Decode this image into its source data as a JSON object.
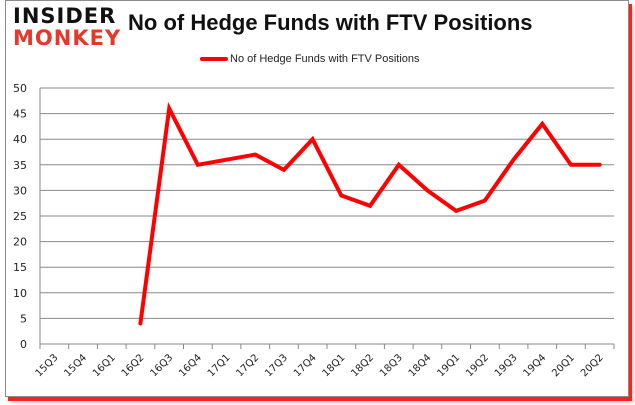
{
  "header": {
    "logo_top": "INSIDER",
    "logo_bottom": "MONKEY",
    "title": "No of Hedge Funds with FTV Positions"
  },
  "legend": {
    "label": "No of Hedge Funds with FTV Positions",
    "color": "#ff0000"
  },
  "colors": {
    "line": "#ff0000",
    "grid": "#888888",
    "brand_red": "#e5382a"
  },
  "chart_data": {
    "type": "line",
    "title": "No of Hedge Funds with FTV Positions",
    "xlabel": "",
    "ylabel": "",
    "ylim": [
      0,
      50
    ],
    "yticks": [
      0,
      5,
      10,
      15,
      20,
      25,
      30,
      35,
      40,
      45,
      50
    ],
    "grid": true,
    "legend_position": "top",
    "categories": [
      "15Q3",
      "15Q4",
      "16Q1",
      "16Q2",
      "16Q3",
      "16Q4",
      "17Q1",
      "17Q2",
      "17Q3",
      "17Q4",
      "18Q1",
      "18Q2",
      "18Q3",
      "18Q4",
      "19Q1",
      "19Q2",
      "19Q3",
      "19Q4",
      "20Q1",
      "20Q2"
    ],
    "series": [
      {
        "name": "No of Hedge Funds with FTV Positions",
        "values": [
          null,
          null,
          null,
          4,
          46,
          35,
          36,
          37,
          34,
          40,
          29,
          27,
          35,
          30,
          26,
          28,
          36,
          43,
          35,
          35
        ]
      }
    ]
  }
}
